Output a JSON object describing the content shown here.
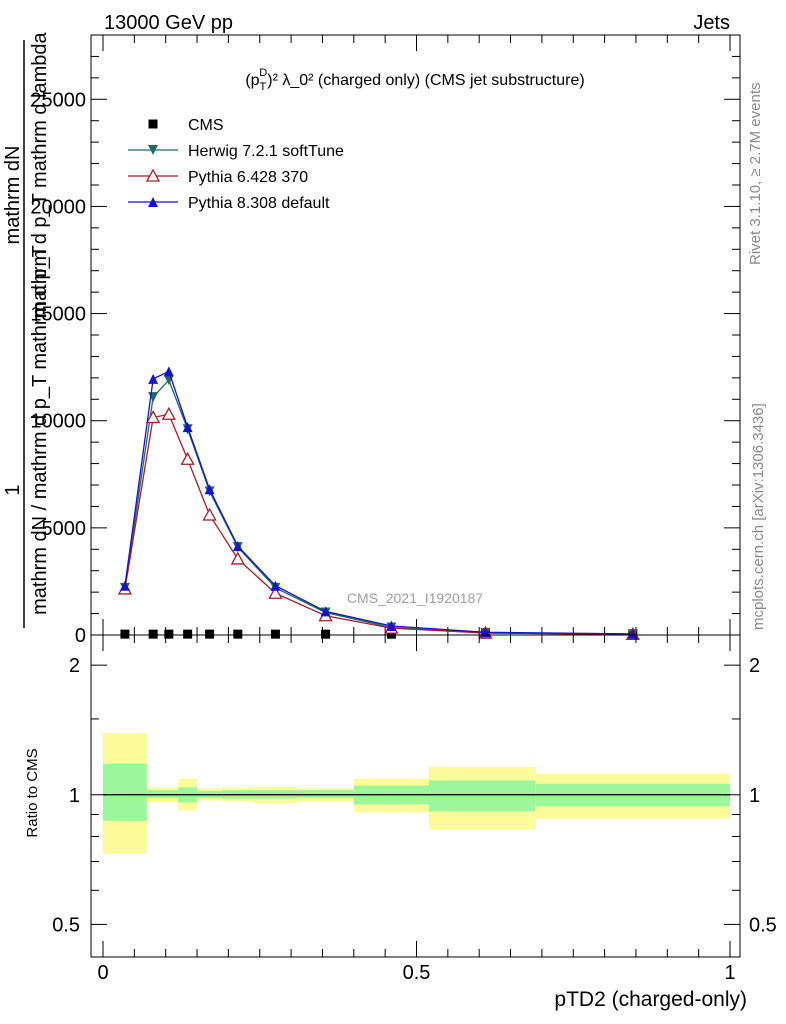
{
  "header": {
    "left": "13000 GeV pp",
    "right": "Jets"
  },
  "side_labels": {
    "rivet": "Rivet 3.1.10, ≥ 2.7M events",
    "mcplots": "mcplots.cern.ch [arXiv:1306.3436]"
  },
  "watermark": "CMS_2021_I1920187",
  "chart_data": [
    {
      "type": "line",
      "title_main": "(p",
      "title_sub": "T",
      "title_sup": "D",
      "title_rest": ")² λ_0² (charged only) (CMS jet substructure)",
      "ylabel_top": "1",
      "ylabel_num": "mathrm dN",
      "ylabel_den1": "mathrm d p_T mathrm d lambda",
      "ylabel_den2": "mathrm dN / mathrm d p_T mathrm d p_T",
      "ylim": [
        0,
        28000
      ],
      "xlim": [
        0,
        1
      ],
      "y_ticks": [
        0,
        5000,
        10000,
        15000,
        20000,
        25000
      ],
      "y_tick_labels": [
        "0",
        "5000",
        "10000",
        "15000",
        "20000",
        "25000"
      ],
      "x": [
        0.035,
        0.08,
        0.105,
        0.135,
        0.17,
        0.215,
        0.275,
        0.355,
        0.46,
        0.61,
        0.845
      ],
      "series": [
        {
          "name": "CMS",
          "color": "#000000",
          "marker": "square",
          "values": [
            40,
            40,
            40,
            40,
            40,
            40,
            40,
            40,
            40,
            40,
            40
          ]
        },
        {
          "name": "Herwig 7.2.1 softTune",
          "color": "#1f6b64",
          "marker": "triangle-down",
          "values": [
            2200,
            11100,
            11900,
            9600,
            6700,
            4100,
            2200,
            1050,
            350,
            100,
            40
          ]
        },
        {
          "name": "Pythia 6.428 370",
          "color": "#a31d2a",
          "marker": "triangle-up-open",
          "values": [
            2150,
            10150,
            10300,
            8200,
            5600,
            3550,
            1950,
            900,
            320,
            90,
            30
          ]
        },
        {
          "name": "Pythia 8.308 default",
          "color": "#1414c8",
          "marker": "triangle-up",
          "values": [
            2300,
            11950,
            12300,
            9700,
            6800,
            4150,
            2300,
            1100,
            420,
            130,
            50
          ]
        }
      ]
    },
    {
      "type": "area",
      "ylabel": "Ratio to CMS",
      "xlabel": "pTD2 (charged-only)",
      "ylim": [
        0.42,
        2.35
      ],
      "log_y": true,
      "y_ticks": [
        0.5,
        1,
        2
      ],
      "y_tick_labels": [
        "0.5",
        "1",
        "2"
      ],
      "x_ticks": [
        0,
        0.5,
        1
      ],
      "x_tick_labels": [
        "0",
        "0.5",
        "1"
      ],
      "bins": [
        {
          "x0": 0.0,
          "x1": 0.07,
          "in_lo": 0.87,
          "in_hi": 1.18,
          "out_lo": 0.73,
          "out_hi": 1.39
        },
        {
          "x0": 0.07,
          "x1": 0.12,
          "in_lo": 0.985,
          "in_hi": 1.025,
          "out_lo": 0.96,
          "out_hi": 1.04
        },
        {
          "x0": 0.12,
          "x1": 0.15,
          "in_lo": 0.96,
          "in_hi": 1.04,
          "out_lo": 0.92,
          "out_hi": 1.09
        },
        {
          "x0": 0.15,
          "x1": 0.19,
          "in_lo": 0.985,
          "in_hi": 1.02,
          "out_lo": 0.97,
          "out_hi": 1.035
        },
        {
          "x0": 0.19,
          "x1": 0.24,
          "in_lo": 0.98,
          "in_hi": 1.025,
          "out_lo": 0.965,
          "out_hi": 1.04
        },
        {
          "x0": 0.24,
          "x1": 0.31,
          "in_lo": 0.98,
          "in_hi": 1.025,
          "out_lo": 0.955,
          "out_hi": 1.045
        },
        {
          "x0": 0.31,
          "x1": 0.4,
          "in_lo": 0.985,
          "in_hi": 1.025,
          "out_lo": 0.965,
          "out_hi": 1.035
        },
        {
          "x0": 0.4,
          "x1": 0.52,
          "in_lo": 0.95,
          "in_hi": 1.05,
          "out_lo": 0.91,
          "out_hi": 1.09
        },
        {
          "x0": 0.52,
          "x1": 0.69,
          "in_lo": 0.915,
          "in_hi": 1.08,
          "out_lo": 0.83,
          "out_hi": 1.16
        },
        {
          "x0": 0.69,
          "x1": 1.0,
          "in_lo": 0.94,
          "in_hi": 1.06,
          "out_lo": 0.88,
          "out_hi": 1.12
        }
      ],
      "colors": {
        "inner": "#9cf79c",
        "outer": "#fbfb9a"
      }
    }
  ]
}
